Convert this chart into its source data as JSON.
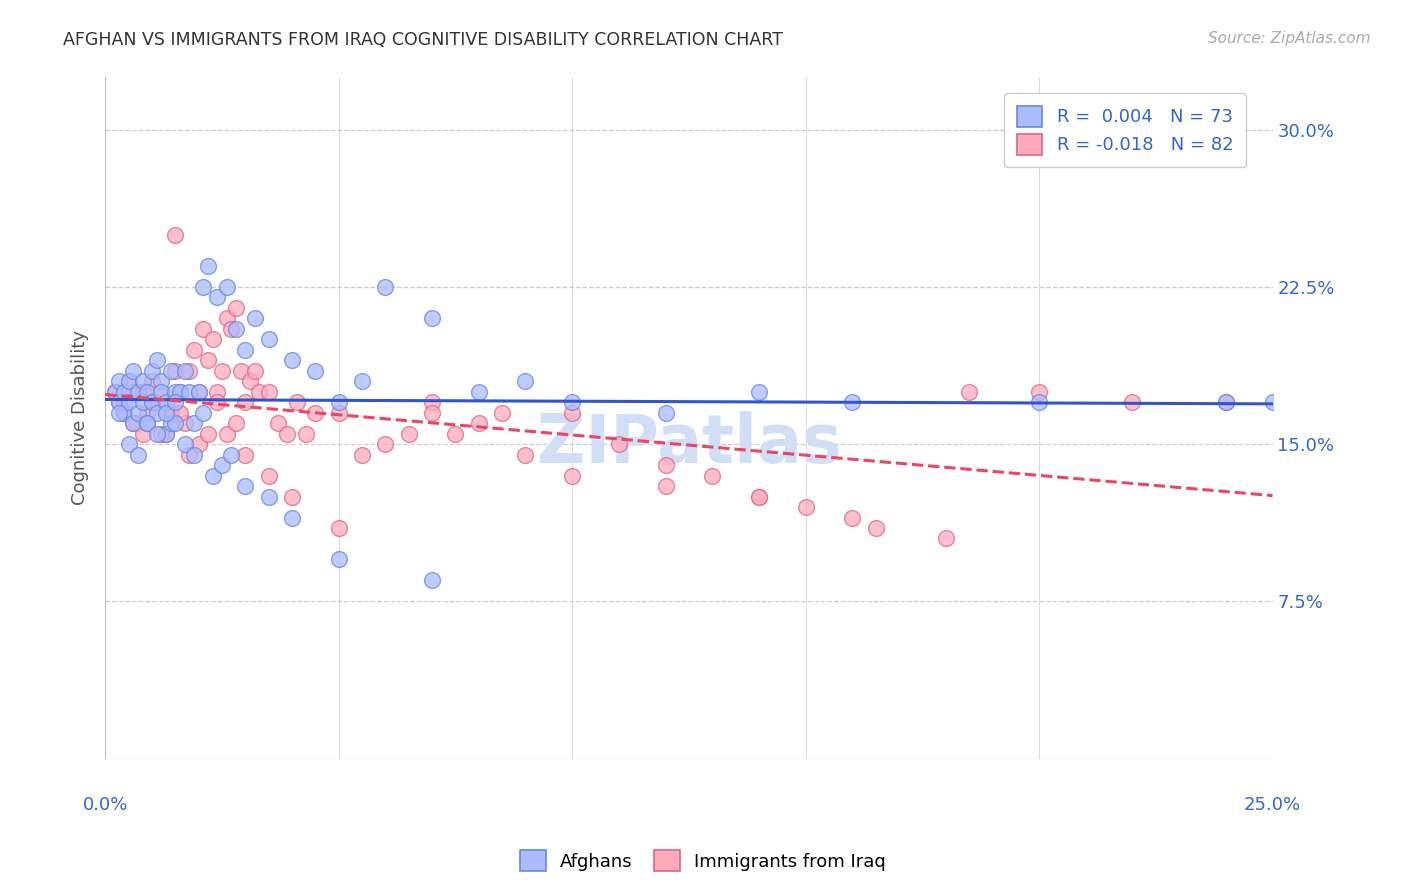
{
  "title": "AFGHAN VS IMMIGRANTS FROM IRAQ COGNITIVE DISABILITY CORRELATION CHART",
  "source": "Source: ZipAtlas.com",
  "ylabel": "Cognitive Disability",
  "ytick_values": [
    7.5,
    15.0,
    22.5,
    30.0
  ],
  "xlim": [
    0.0,
    25.0
  ],
  "ylim": [
    0.0,
    32.5
  ],
  "legend1_text": "R =  0.004   N = 73",
  "legend2_text": "R = -0.018   N = 82",
  "legend1_face": "#aabbff",
  "legend2_face": "#ffaabb",
  "line1_color": "#3355cc",
  "line2_color": "#ee4466",
  "scatter1_face": "#aabbff",
  "scatter1_edge": "#6688dd",
  "scatter2_face": "#ffaabb",
  "scatter2_edge": "#dd6688",
  "background_color": "#ffffff",
  "grid_color": "#cccccc",
  "title_color": "#333333",
  "tick_label_color": "#3366cc",
  "watermark_color": "#d0dff5",
  "afghans_x": [
    0.2,
    0.3,
    0.3,
    0.4,
    0.4,
    0.5,
    0.5,
    0.6,
    0.6,
    0.7,
    0.7,
    0.8,
    0.8,
    0.9,
    0.9,
    1.0,
    1.0,
    1.1,
    1.1,
    1.2,
    1.2,
    1.3,
    1.3,
    1.4,
    1.4,
    1.5,
    1.5,
    1.6,
    1.7,
    1.8,
    1.9,
    2.0,
    2.1,
    2.2,
    2.4,
    2.6,
    2.8,
    3.0,
    3.2,
    3.5,
    4.0,
    4.5,
    5.0,
    5.5,
    6.0,
    7.0,
    8.0,
    9.0,
    10.0,
    12.0,
    14.0,
    16.0,
    20.0,
    24.0,
    25.0,
    0.3,
    0.5,
    0.7,
    0.9,
    1.1,
    1.3,
    1.5,
    1.7,
    1.9,
    2.1,
    2.3,
    2.5,
    2.7,
    3.0,
    3.5,
    4.0,
    5.0,
    7.0
  ],
  "afghans_y": [
    17.5,
    17.0,
    18.0,
    16.5,
    17.5,
    18.0,
    17.0,
    16.0,
    18.5,
    17.5,
    16.5,
    17.0,
    18.0,
    17.5,
    16.0,
    17.0,
    18.5,
    16.5,
    19.0,
    18.0,
    17.5,
    15.5,
    17.0,
    16.0,
    18.5,
    17.5,
    16.0,
    17.5,
    18.5,
    17.5,
    16.0,
    17.5,
    22.5,
    23.5,
    22.0,
    22.5,
    20.5,
    19.5,
    21.0,
    20.0,
    19.0,
    18.5,
    17.0,
    18.0,
    22.5,
    21.0,
    17.5,
    18.0,
    17.0,
    16.5,
    17.5,
    17.0,
    17.0,
    17.0,
    17.0,
    16.5,
    15.0,
    14.5,
    16.0,
    15.5,
    16.5,
    17.0,
    15.0,
    14.5,
    16.5,
    13.5,
    14.0,
    14.5,
    13.0,
    12.5,
    11.5,
    9.5,
    8.5
  ],
  "iraq_x": [
    0.2,
    0.3,
    0.4,
    0.5,
    0.6,
    0.7,
    0.8,
    0.9,
    1.0,
    1.1,
    1.2,
    1.3,
    1.4,
    1.5,
    1.5,
    1.6,
    1.7,
    1.8,
    1.9,
    2.0,
    2.1,
    2.2,
    2.3,
    2.4,
    2.5,
    2.6,
    2.7,
    2.8,
    2.9,
    3.0,
    3.1,
    3.2,
    3.3,
    3.5,
    3.7,
    3.9,
    4.1,
    4.3,
    4.5,
    5.0,
    5.5,
    6.0,
    6.5,
    7.0,
    7.5,
    8.0,
    9.0,
    10.0,
    11.0,
    12.0,
    13.0,
    14.0,
    15.0,
    16.5,
    18.0,
    0.4,
    0.6,
    0.8,
    1.0,
    1.2,
    1.4,
    1.6,
    1.8,
    2.0,
    2.2,
    2.4,
    2.6,
    2.8,
    3.0,
    3.5,
    4.0,
    5.0,
    7.0,
    8.5,
    10.0,
    12.0,
    14.0,
    16.0,
    18.5,
    20.0,
    22.0,
    24.0
  ],
  "iraq_y": [
    17.5,
    17.0,
    16.5,
    18.0,
    17.5,
    16.0,
    17.5,
    16.5,
    18.0,
    17.0,
    17.5,
    15.5,
    16.5,
    18.5,
    25.0,
    17.5,
    16.0,
    18.5,
    19.5,
    17.5,
    20.5,
    19.0,
    20.0,
    17.5,
    18.5,
    21.0,
    20.5,
    21.5,
    18.5,
    17.0,
    18.0,
    18.5,
    17.5,
    17.5,
    16.0,
    15.5,
    17.0,
    15.5,
    16.5,
    16.5,
    14.5,
    15.0,
    15.5,
    17.0,
    15.5,
    16.0,
    14.5,
    13.5,
    15.0,
    14.0,
    13.5,
    12.5,
    12.0,
    11.0,
    10.5,
    17.0,
    16.0,
    15.5,
    17.0,
    15.5,
    16.5,
    16.5,
    14.5,
    15.0,
    15.5,
    17.0,
    15.5,
    16.0,
    14.5,
    13.5,
    12.5,
    11.0,
    16.5,
    16.5,
    16.5,
    13.0,
    12.5,
    11.5,
    17.5,
    17.5,
    17.0,
    17.0
  ]
}
